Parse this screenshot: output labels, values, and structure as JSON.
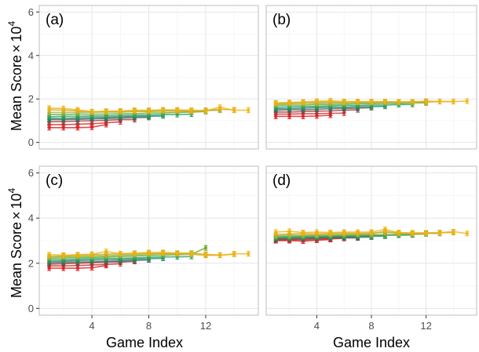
{
  "figure": {
    "ylabel_main": "Mean Score",
    "ylabel_times": "×",
    "ylabel_base": "10",
    "ylabel_exp": "4",
    "xlabel": "Game Index",
    "y_ticks": [
      "0",
      "2",
      "4",
      "6"
    ],
    "x_ticks": [
      "4",
      "8",
      "12"
    ]
  },
  "chart_data": [
    {
      "panel": "(a)",
      "type": "line",
      "xlim": [
        0.3,
        15.7
      ],
      "ylim": [
        -0.3,
        6.3
      ],
      "grid": true,
      "series": [
        {
          "color": "#e41a1c",
          "x": [
            1,
            2,
            3,
            4,
            5
          ],
          "y": [
            0.68,
            0.68,
            0.68,
            0.7,
            0.82
          ]
        },
        {
          "color": "#cc2a2a",
          "x": [
            1,
            2,
            3,
            4,
            5,
            6
          ],
          "y": [
            0.82,
            0.82,
            0.84,
            0.86,
            0.9,
            0.95
          ]
        },
        {
          "color": "#a03a3a",
          "x": [
            1,
            2,
            3,
            4,
            5,
            6,
            7
          ],
          "y": [
            0.95,
            0.96,
            0.98,
            1.0,
            1.02,
            1.05,
            1.05
          ]
        },
        {
          "color": "#5a5a5a",
          "x": [
            1,
            2,
            3,
            4,
            5,
            6,
            7,
            8
          ],
          "y": [
            1.05,
            1.05,
            1.06,
            1.08,
            1.1,
            1.12,
            1.14,
            1.15
          ]
        },
        {
          "color": "#1b8a5a",
          "x": [
            1,
            2,
            3,
            4,
            5,
            6,
            7,
            8,
            9
          ],
          "y": [
            1.1,
            1.1,
            1.12,
            1.14,
            1.15,
            1.18,
            1.2,
            1.2,
            1.22
          ]
        },
        {
          "color": "#1a9e77",
          "x": [
            1,
            2,
            3,
            4,
            5,
            6,
            7,
            8,
            9,
            10,
            11
          ],
          "y": [
            1.18,
            1.2,
            1.2,
            1.22,
            1.22,
            1.24,
            1.25,
            1.26,
            1.28,
            1.28,
            1.3
          ]
        },
        {
          "color": "#66a61e",
          "x": [
            1,
            2,
            3,
            4,
            5,
            6,
            7,
            8,
            9,
            10,
            11,
            12
          ],
          "y": [
            1.28,
            1.28,
            1.3,
            1.3,
            1.3,
            1.32,
            1.32,
            1.35,
            1.36,
            1.38,
            1.4,
            1.42
          ]
        },
        {
          "color": "#8fb84a",
          "x": [
            1,
            2,
            3,
            4,
            5,
            6,
            7,
            8,
            9,
            10,
            11,
            12,
            13
          ],
          "y": [
            1.38,
            1.38,
            1.38,
            1.4,
            1.4,
            1.4,
            1.42,
            1.42,
            1.44,
            1.45,
            1.46,
            1.46,
            1.48
          ]
        },
        {
          "color": "#d9a520",
          "x": [
            1,
            2,
            3,
            4,
            5,
            6,
            7,
            8,
            9,
            10,
            11,
            12,
            13,
            14
          ],
          "y": [
            1.5,
            1.48,
            1.45,
            1.4,
            1.42,
            1.42,
            1.45,
            1.45,
            1.48,
            1.46,
            1.42,
            1.48,
            1.52,
            1.5
          ]
        },
        {
          "color": "#efb40f",
          "x": [
            1,
            2,
            3,
            4,
            5,
            6,
            7,
            8,
            9,
            10,
            11,
            12,
            13,
            14,
            15
          ],
          "y": [
            1.58,
            1.56,
            1.5,
            1.42,
            1.44,
            1.45,
            1.48,
            1.48,
            1.5,
            1.5,
            1.48,
            1.46,
            1.62,
            1.48,
            1.48
          ]
        }
      ]
    },
    {
      "panel": "(b)",
      "type": "line",
      "xlim": [
        0.3,
        15.7
      ],
      "ylim": [
        -0.3,
        6.3
      ],
      "grid": true,
      "series": [
        {
          "color": "#e41a1c",
          "x": [
            1,
            2,
            3,
            4,
            5
          ],
          "y": [
            1.2,
            1.2,
            1.2,
            1.22,
            1.25
          ]
        },
        {
          "color": "#cc2a2a",
          "x": [
            1,
            2,
            3,
            4,
            5,
            6
          ],
          "y": [
            1.3,
            1.3,
            1.32,
            1.32,
            1.34,
            1.35
          ]
        },
        {
          "color": "#a03a3a",
          "x": [
            1,
            2,
            3,
            4,
            5,
            6,
            7
          ],
          "y": [
            1.4,
            1.4,
            1.42,
            1.44,
            1.45,
            1.48,
            1.5
          ]
        },
        {
          "color": "#5a5a5a",
          "x": [
            1,
            2,
            3,
            4,
            5,
            6,
            7,
            8
          ],
          "y": [
            1.48,
            1.5,
            1.5,
            1.52,
            1.55,
            1.56,
            1.58,
            1.6
          ]
        },
        {
          "color": "#1b8a5a",
          "x": [
            1,
            2,
            3,
            4,
            5,
            6,
            7,
            8,
            9
          ],
          "y": [
            1.55,
            1.56,
            1.58,
            1.6,
            1.62,
            1.62,
            1.64,
            1.65,
            1.66
          ]
        },
        {
          "color": "#1a9e77",
          "x": [
            1,
            2,
            3,
            4,
            5,
            6,
            7,
            8,
            9,
            10,
            11
          ],
          "y": [
            1.62,
            1.64,
            1.65,
            1.66,
            1.68,
            1.7,
            1.7,
            1.72,
            1.72,
            1.74,
            1.75
          ]
        },
        {
          "color": "#66a61e",
          "x": [
            1,
            2,
            3,
            4,
            5,
            6,
            7,
            8,
            9,
            10,
            11,
            12
          ],
          "y": [
            1.7,
            1.72,
            1.72,
            1.74,
            1.75,
            1.76,
            1.78,
            1.78,
            1.8,
            1.8,
            1.82,
            1.82
          ]
        },
        {
          "color": "#8fb84a",
          "x": [
            1,
            2,
            3,
            4,
            5,
            6,
            7,
            8,
            9,
            10,
            11,
            12,
            13
          ],
          "y": [
            1.76,
            1.78,
            1.8,
            1.8,
            1.82,
            1.82,
            1.84,
            1.84,
            1.85,
            1.85,
            1.86,
            1.86,
            1.88
          ]
        },
        {
          "color": "#d9a520",
          "x": [
            1,
            2,
            3,
            4,
            5,
            6,
            7,
            8,
            9,
            10,
            11,
            12,
            13,
            14
          ],
          "y": [
            1.8,
            1.82,
            1.84,
            1.85,
            1.86,
            1.85,
            1.86,
            1.86,
            1.87,
            1.86,
            1.86,
            1.88,
            1.88,
            1.88
          ]
        },
        {
          "color": "#efb40f",
          "x": [
            1,
            2,
            3,
            4,
            5,
            6,
            7,
            8,
            9,
            10,
            11,
            12,
            13,
            14,
            15
          ],
          "y": [
            1.82,
            1.84,
            1.86,
            1.9,
            1.92,
            1.88,
            1.88,
            1.88,
            1.88,
            1.86,
            1.86,
            1.9,
            1.88,
            1.88,
            1.9
          ]
        }
      ]
    },
    {
      "panel": "(c)",
      "type": "line",
      "xlim": [
        0.3,
        15.7
      ],
      "ylim": [
        -0.3,
        6.3
      ],
      "grid": true,
      "series": [
        {
          "color": "#e41a1c",
          "x": [
            1,
            2,
            3,
            4,
            5
          ],
          "y": [
            1.78,
            1.78,
            1.78,
            1.8,
            1.9
          ]
        },
        {
          "color": "#cc2a2a",
          "x": [
            1,
            2,
            3,
            4,
            5,
            6
          ],
          "y": [
            1.88,
            1.88,
            1.9,
            1.92,
            1.95,
            1.98
          ]
        },
        {
          "color": "#a03a3a",
          "x": [
            1,
            2,
            3,
            4,
            5,
            6,
            7
          ],
          "y": [
            1.96,
            1.98,
            2.0,
            2.02,
            2.05,
            2.05,
            2.08
          ]
        },
        {
          "color": "#5a5a5a",
          "x": [
            1,
            2,
            3,
            4,
            5,
            6,
            7,
            8
          ],
          "y": [
            2.02,
            2.04,
            2.05,
            2.06,
            2.08,
            2.1,
            2.12,
            2.15
          ]
        },
        {
          "color": "#1b8a5a",
          "x": [
            1,
            2,
            3,
            4,
            5,
            6,
            7,
            8,
            9
          ],
          "y": [
            2.08,
            2.1,
            2.12,
            2.14,
            2.15,
            2.16,
            2.18,
            2.2,
            2.22
          ]
        },
        {
          "color": "#1a9e77",
          "x": [
            1,
            2,
            3,
            4,
            5,
            6,
            7,
            8,
            9,
            10,
            11
          ],
          "y": [
            2.15,
            2.16,
            2.18,
            2.2,
            2.22,
            2.22,
            2.24,
            2.26,
            2.28,
            2.28,
            2.3
          ]
        },
        {
          "color": "#66a61e",
          "x": [
            1,
            2,
            3,
            4,
            5,
            6,
            7,
            8,
            9,
            10,
            11,
            12
          ],
          "y": [
            2.22,
            2.24,
            2.25,
            2.26,
            2.28,
            2.3,
            2.32,
            2.34,
            2.36,
            2.38,
            2.4,
            2.68
          ]
        },
        {
          "color": "#8fb84a",
          "x": [
            1,
            2,
            3,
            4,
            5,
            6,
            7,
            8,
            9,
            10,
            11,
            12,
            13
          ],
          "y": [
            2.28,
            2.3,
            2.3,
            2.32,
            2.34,
            2.36,
            2.38,
            2.4,
            2.42,
            2.44,
            2.45,
            2.38,
            2.36
          ]
        },
        {
          "color": "#d9a520",
          "x": [
            1,
            2,
            3,
            4,
            5,
            6,
            7,
            8,
            9,
            10,
            11,
            12,
            13,
            14
          ],
          "y": [
            2.3,
            2.32,
            2.35,
            2.38,
            2.4,
            2.42,
            2.42,
            2.44,
            2.45,
            2.42,
            2.4,
            2.35,
            2.36,
            2.4
          ]
        },
        {
          "color": "#efb40f",
          "x": [
            1,
            2,
            3,
            4,
            5,
            6,
            7,
            8,
            9,
            10,
            11,
            12,
            13,
            14,
            15
          ],
          "y": [
            2.38,
            2.36,
            2.38,
            2.4,
            2.52,
            2.42,
            2.45,
            2.48,
            2.48,
            2.45,
            2.42,
            2.4,
            2.35,
            2.42,
            2.42
          ]
        }
      ]
    },
    {
      "panel": "(d)",
      "type": "line",
      "xlim": [
        0.3,
        15.7
      ],
      "ylim": [
        -0.3,
        6.3
      ],
      "grid": true,
      "series": [
        {
          "color": "#e41a1c",
          "x": [
            1,
            2,
            3,
            4,
            5
          ],
          "y": [
            3.0,
            3.0,
            2.98,
            3.02,
            3.05
          ]
        },
        {
          "color": "#cc2a2a",
          "x": [
            1,
            2,
            3,
            4,
            5,
            6
          ],
          "y": [
            3.02,
            3.04,
            3.04,
            3.06,
            3.08,
            3.1
          ]
        },
        {
          "color": "#a03a3a",
          "x": [
            1,
            2,
            3,
            4,
            5,
            6,
            7
          ],
          "y": [
            3.05,
            3.06,
            3.08,
            3.1,
            3.1,
            3.12,
            3.12
          ]
        },
        {
          "color": "#5a5a5a",
          "x": [
            1,
            2,
            3,
            4,
            5,
            6,
            7,
            8
          ],
          "y": [
            3.08,
            3.1,
            3.1,
            3.12,
            3.14,
            3.15,
            3.15,
            3.16
          ]
        },
        {
          "color": "#1b8a5a",
          "x": [
            1,
            2,
            3,
            4,
            5,
            6,
            7,
            8,
            9
          ],
          "y": [
            3.1,
            3.12,
            3.14,
            3.15,
            3.16,
            3.18,
            3.18,
            3.2,
            3.2
          ]
        },
        {
          "color": "#1a9e77",
          "x": [
            1,
            2,
            3,
            4,
            5,
            6,
            7,
            8,
            9,
            10,
            11
          ],
          "y": [
            3.15,
            3.16,
            3.18,
            3.18,
            3.2,
            3.2,
            3.22,
            3.22,
            3.24,
            3.24,
            3.25
          ]
        },
        {
          "color": "#66a61e",
          "x": [
            1,
            2,
            3,
            4,
            5,
            6,
            7,
            8,
            9,
            10,
            11,
            12
          ],
          "y": [
            3.18,
            3.2,
            3.2,
            3.22,
            3.22,
            3.24,
            3.25,
            3.26,
            3.26,
            3.28,
            3.28,
            3.3
          ]
        },
        {
          "color": "#8fb84a",
          "x": [
            1,
            2,
            3,
            4,
            5,
            6,
            7,
            8,
            9,
            10,
            11,
            12,
            13
          ],
          "y": [
            3.22,
            3.24,
            3.25,
            3.26,
            3.28,
            3.28,
            3.3,
            3.3,
            3.42,
            3.32,
            3.3,
            3.32,
            3.32
          ]
        },
        {
          "color": "#d9a520",
          "x": [
            1,
            2,
            3,
            4,
            5,
            6,
            7,
            8,
            9,
            10,
            11,
            12,
            13,
            14
          ],
          "y": [
            3.28,
            3.3,
            3.32,
            3.3,
            3.32,
            3.34,
            3.32,
            3.34,
            3.36,
            3.34,
            3.32,
            3.34,
            3.35,
            3.36
          ]
        },
        {
          "color": "#efb40f",
          "x": [
            1,
            2,
            3,
            4,
            5,
            6,
            7,
            8,
            9,
            10,
            11,
            12,
            13,
            14,
            15
          ],
          "y": [
            3.38,
            3.42,
            3.36,
            3.38,
            3.36,
            3.38,
            3.38,
            3.38,
            3.5,
            3.36,
            3.35,
            3.35,
            3.36,
            3.4,
            3.32
          ]
        }
      ]
    }
  ]
}
